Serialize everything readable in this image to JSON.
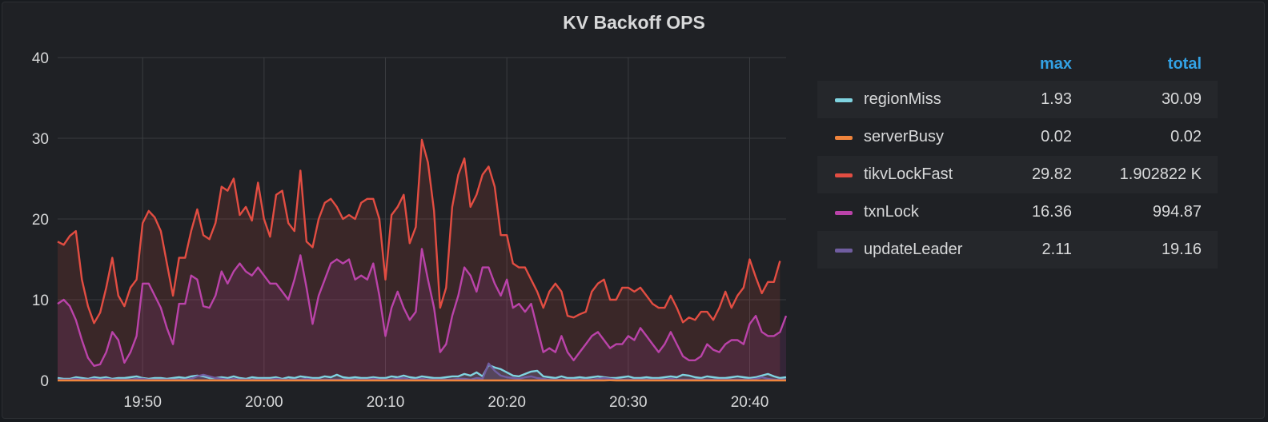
{
  "panel": {
    "title": "KV Backoff OPS"
  },
  "legend": {
    "headers": {
      "max": "max",
      "total": "total"
    },
    "rows": [
      {
        "name": "regionMiss",
        "max": "1.93",
        "total": "30.09",
        "color": "#7fd3e0"
      },
      {
        "name": "serverBusy",
        "max": "0.02",
        "total": "0.02",
        "color": "#ef843c"
      },
      {
        "name": "tikvLockFast",
        "max": "29.82",
        "total": "1.902822 K",
        "color": "#e24d42"
      },
      {
        "name": "txnLock",
        "max": "16.36",
        "total": "994.87",
        "color": "#ba43a9"
      },
      {
        "name": "updateLeader",
        "max": "2.11",
        "total": "19.16",
        "color": "#705da0"
      }
    ]
  },
  "chart_data": {
    "type": "area",
    "title": "KV Backoff OPS",
    "xlabel": "",
    "ylabel": "",
    "ylim": [
      0,
      40
    ],
    "yticks": [
      0,
      10,
      20,
      30,
      40
    ],
    "xlim": [
      "19:43",
      "20:43"
    ],
    "xticks": [
      "19:50",
      "20:00",
      "20:10",
      "20:20",
      "20:30",
      "20:40"
    ],
    "grid": true,
    "legend_position": "right",
    "sample_interval_seconds": 30,
    "series": [
      {
        "name": "tikvLockFast",
        "color": "#e24d42",
        "values": [
          17.2,
          16.8,
          17.9,
          18.5,
          12.5,
          9.2,
          7.1,
          8.4,
          11.5,
          15.2,
          10.5,
          9.2,
          11.5,
          12.5,
          19.5,
          21.0,
          20.2,
          18.5,
          14.5,
          10.5,
          15.2,
          15.2,
          18.5,
          21.2,
          18.0,
          17.5,
          19.5,
          24.0,
          23.5,
          25.0,
          20.5,
          21.5,
          19.8,
          24.5,
          20.0,
          17.8,
          23.0,
          23.5,
          19.5,
          18.5,
          26.0,
          17.2,
          16.5,
          20.0,
          22.0,
          22.5,
          21.5,
          20.0,
          20.5,
          20.0,
          22.0,
          22.5,
          22.5,
          20.0,
          12.5,
          20.5,
          21.5,
          23.0,
          17.0,
          19.0,
          29.8,
          27.0,
          21.0,
          9.0,
          11.5,
          21.5,
          25.5,
          27.5,
          21.5,
          23.0,
          25.5,
          26.5,
          24.0,
          18.0,
          18.0,
          14.5,
          14.0,
          14.0,
          12.5,
          11.0,
          9.0,
          11.0,
          12.0,
          11.0,
          8.0,
          7.8,
          8.2,
          8.5,
          11.0,
          12.0,
          12.5,
          10.0,
          10.0,
          11.5,
          11.5,
          11.0,
          11.5,
          10.5,
          9.5,
          9.0,
          9.0,
          10.5,
          9.0,
          7.2,
          7.8,
          7.5,
          8.5,
          8.5,
          7.5,
          9.0,
          11.0,
          9.0,
          10.5,
          11.5,
          15.0,
          12.8,
          10.8,
          12.2,
          12.2,
          14.8
        ]
      },
      {
        "name": "txnLock",
        "color": "#ba43a9",
        "values": [
          9.5,
          10.0,
          9.2,
          7.5,
          5.0,
          2.8,
          1.8,
          2.0,
          3.5,
          6.0,
          5.0,
          2.2,
          3.5,
          5.5,
          12.0,
          12.0,
          10.5,
          9.0,
          6.5,
          4.5,
          9.5,
          9.5,
          13.0,
          12.5,
          9.2,
          9.0,
          10.5,
          13.5,
          12.0,
          13.5,
          14.5,
          13.5,
          13.0,
          14.0,
          13.0,
          12.0,
          12.0,
          11.0,
          10.0,
          12.5,
          15.5,
          11.5,
          7.0,
          10.5,
          12.5,
          14.5,
          15.0,
          14.5,
          15.0,
          12.5,
          13.0,
          12.5,
          14.5,
          10.5,
          5.5,
          9.0,
          11.0,
          9.0,
          7.5,
          8.5,
          16.3,
          12.5,
          9.0,
          3.5,
          4.5,
          8.0,
          10.5,
          14.0,
          13.0,
          11.0,
          14.0,
          14.0,
          12.0,
          10.5,
          12.5,
          9.0,
          9.5,
          8.5,
          9.5,
          6.5,
          3.5,
          4.0,
          3.5,
          5.5,
          3.5,
          2.5,
          3.5,
          4.5,
          5.5,
          6.0,
          5.0,
          4.0,
          4.5,
          4.5,
          5.5,
          5.0,
          6.5,
          5.5,
          4.5,
          3.5,
          4.5,
          6.0,
          4.5,
          3.0,
          2.5,
          2.5,
          3.0,
          4.5,
          3.8,
          3.5,
          4.5,
          5.0,
          5.0,
          4.5,
          7.0,
          8.0,
          6.0,
          5.5,
          5.5,
          6.0,
          8.0
        ]
      },
      {
        "name": "regionMiss",
        "color": "#7fd3e0",
        "values": [
          0.3,
          0.2,
          0.2,
          0.4,
          0.3,
          0.2,
          0.4,
          0.3,
          0.4,
          0.2,
          0.3,
          0.3,
          0.4,
          0.5,
          0.3,
          0.2,
          0.3,
          0.3,
          0.2,
          0.3,
          0.4,
          0.3,
          0.5,
          0.6,
          0.5,
          0.3,
          0.3,
          0.4,
          0.3,
          0.5,
          0.3,
          0.2,
          0.4,
          0.3,
          0.3,
          0.3,
          0.4,
          0.2,
          0.4,
          0.3,
          0.5,
          0.4,
          0.3,
          0.3,
          0.5,
          0.4,
          0.7,
          0.4,
          0.3,
          0.4,
          0.3,
          0.3,
          0.4,
          0.3,
          0.3,
          0.5,
          0.4,
          0.6,
          0.4,
          0.3,
          0.5,
          0.4,
          0.3,
          0.3,
          0.4,
          0.5,
          0.5,
          0.8,
          0.6,
          1.0,
          0.5,
          1.9,
          1.6,
          1.4,
          1.0,
          0.6,
          0.5,
          0.8,
          1.1,
          1.2,
          0.5,
          0.4,
          0.3,
          0.5,
          0.3,
          0.3,
          0.4,
          0.3,
          0.4,
          0.5,
          0.4,
          0.3,
          0.3,
          0.4,
          0.5,
          0.3,
          0.3,
          0.4,
          0.3,
          0.3,
          0.4,
          0.5,
          0.4,
          0.7,
          0.6,
          0.4,
          0.3,
          0.5,
          0.4,
          0.3,
          0.3,
          0.4,
          0.5,
          0.4,
          0.3,
          0.4,
          0.6,
          0.8,
          0.5,
          0.3,
          0.4
        ]
      },
      {
        "name": "updateLeader",
        "color": "#705da0",
        "values": [
          0.1,
          0.1,
          0.1,
          0.2,
          0.1,
          0.1,
          0.2,
          0.1,
          0.2,
          0.1,
          0.1,
          0.1,
          0.1,
          0.2,
          0.2,
          0.1,
          0.1,
          0.1,
          0.1,
          0.1,
          0.1,
          0.1,
          0.2,
          0.5,
          0.7,
          0.5,
          0.3,
          0.2,
          0.1,
          0.2,
          0.1,
          0.1,
          0.1,
          0.1,
          0.1,
          0.1,
          0.2,
          0.1,
          0.1,
          0.1,
          0.1,
          0.2,
          0.1,
          0.1,
          0.1,
          0.1,
          0.1,
          0.1,
          0.1,
          0.1,
          0.1,
          0.1,
          0.2,
          0.1,
          0.1,
          0.1,
          0.2,
          0.3,
          0.1,
          0.1,
          0.2,
          0.1,
          0.1,
          0.1,
          0.1,
          0.1,
          0.2,
          0.2,
          0.1,
          0.3,
          0.2,
          2.1,
          1.2,
          0.6,
          0.4,
          0.3,
          0.2,
          0.4,
          0.5,
          0.3,
          0.2,
          0.1,
          0.1,
          0.1,
          0.1,
          0.1,
          0.1,
          0.1,
          0.1,
          0.2,
          0.3,
          0.2,
          0.1,
          0.1,
          0.1,
          0.1,
          0.1,
          0.1,
          0.1,
          0.1,
          0.1,
          0.2,
          0.1,
          0.1,
          0.1,
          0.1,
          0.1,
          0.1,
          0.1,
          0.1,
          0.1,
          0.1,
          0.1,
          0.1,
          0.1,
          0.2,
          0.4,
          0.2,
          0.1,
          0.1,
          0.1
        ]
      },
      {
        "name": "serverBusy",
        "color": "#ef843c",
        "values": [
          0,
          0,
          0,
          0,
          0,
          0,
          0,
          0,
          0,
          0,
          0,
          0,
          0,
          0,
          0,
          0,
          0,
          0,
          0,
          0,
          0,
          0,
          0,
          0,
          0,
          0,
          0,
          0,
          0,
          0,
          0,
          0,
          0,
          0,
          0,
          0,
          0,
          0,
          0,
          0,
          0,
          0,
          0,
          0,
          0,
          0,
          0,
          0,
          0,
          0,
          0,
          0,
          0,
          0,
          0,
          0,
          0,
          0,
          0,
          0,
          0,
          0,
          0,
          0,
          0,
          0,
          0,
          0,
          0,
          0,
          0,
          0,
          0,
          0,
          0,
          0,
          0,
          0,
          0,
          0,
          0,
          0,
          0,
          0,
          0,
          0,
          0,
          0,
          0,
          0,
          0,
          0.02,
          0,
          0,
          0,
          0,
          0,
          0,
          0,
          0,
          0,
          0,
          0,
          0,
          0,
          0,
          0,
          0,
          0,
          0,
          0,
          0,
          0,
          0,
          0,
          0,
          0,
          0,
          0,
          0,
          0
        ]
      }
    ]
  }
}
